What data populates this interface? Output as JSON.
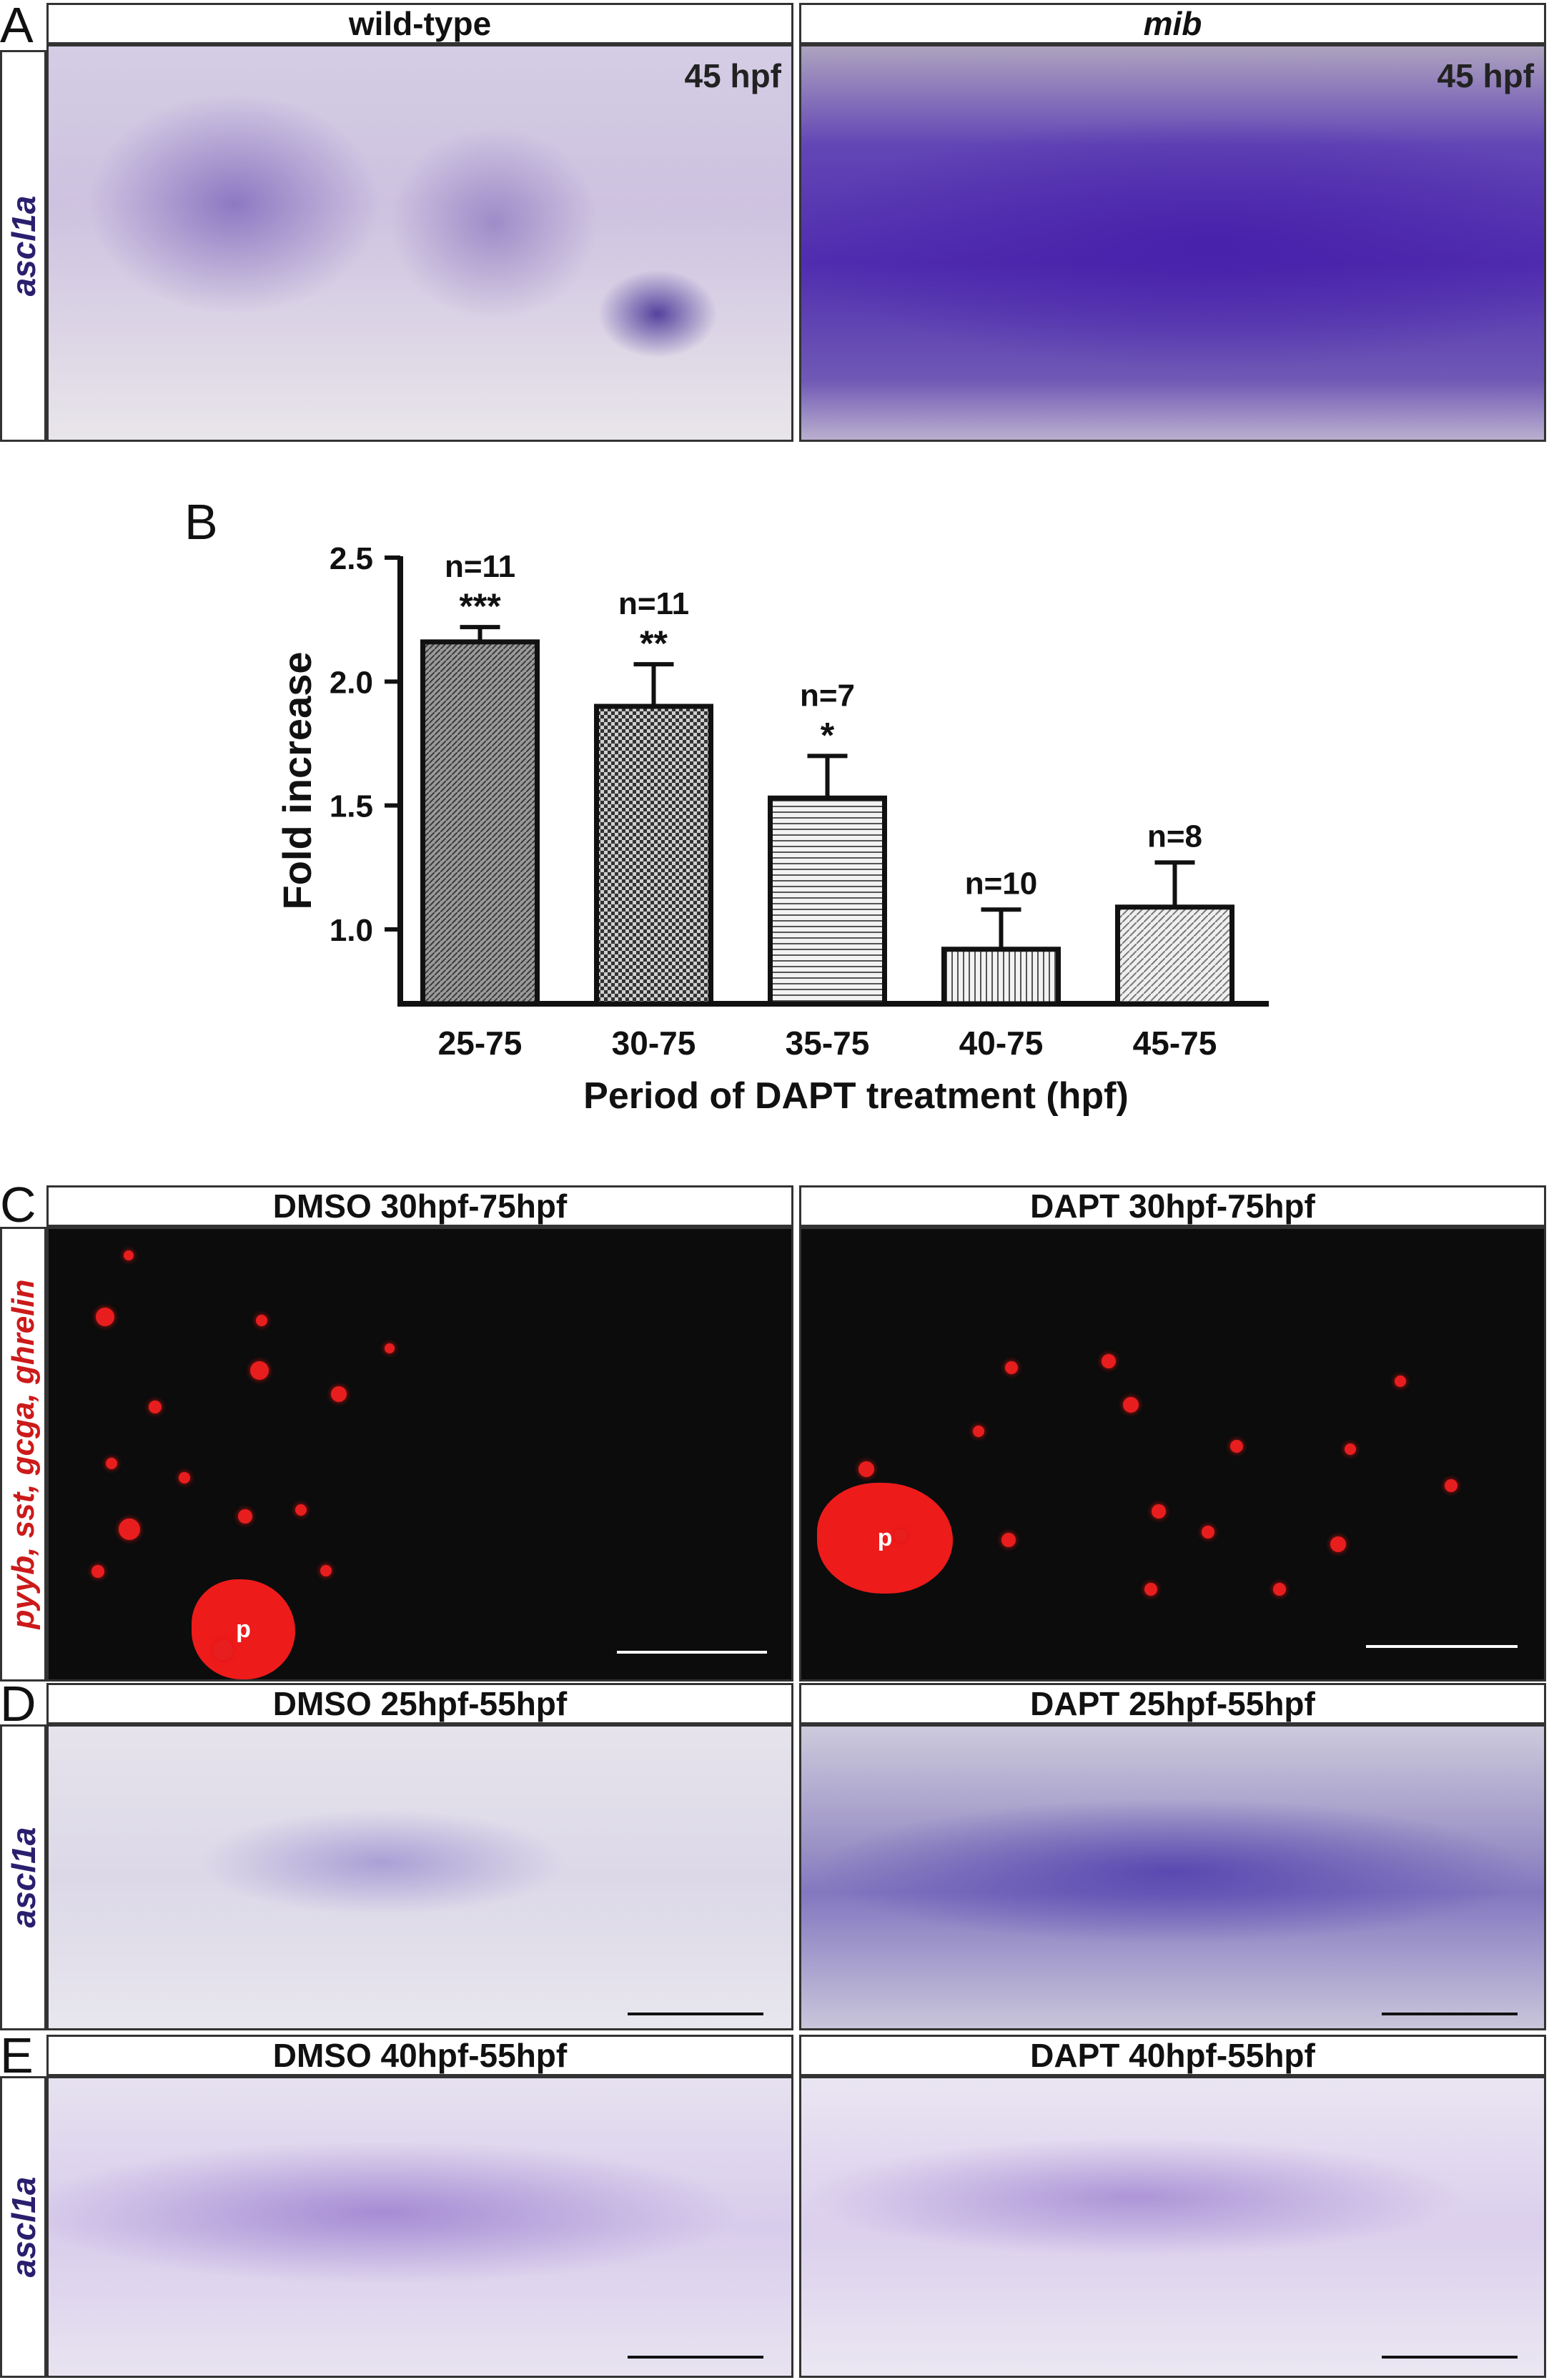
{
  "panel_letters": {
    "a": "A",
    "b": "B",
    "c": "C",
    "d": "D",
    "e": "E"
  },
  "panel_a": {
    "left_title": "wild-type",
    "right_title": "mib",
    "stain_label": "ascl1a",
    "left_stage": "45 hpf",
    "right_stage": "45 hpf"
  },
  "panel_b": {
    "chart_data": {
      "type": "bar",
      "categories": [
        "25-75",
        "30-75",
        "35-75",
        "40-75",
        "45-75"
      ],
      "values": [
        2.16,
        1.9,
        1.53,
        0.92,
        1.09
      ],
      "errors": [
        0.06,
        0.17,
        0.17,
        0.16,
        0.18
      ],
      "n_labels": [
        "n=11",
        "n=11",
        "n=7",
        "n=10",
        "n=8"
      ],
      "significance": [
        "***",
        "**",
        "*",
        "",
        ""
      ],
      "ylabel": "Fold increase",
      "xlabel": "Period of DAPT treatment (hpf)",
      "yticks": [
        "1.0",
        "1.5",
        "2.0",
        "2.5"
      ],
      "ylim": [
        0.7,
        2.5
      ],
      "grid": false
    }
  },
  "panel_c": {
    "left_title": "DMSO 30hpf-75hpf",
    "right_title": "DAPT 30hpf-75hpf",
    "stain_label": "pyyb, sst, gcga, ghrelin",
    "blob_label_left": "p",
    "blob_label_right": "p"
  },
  "panel_d": {
    "left_title": "DMSO 25hpf-55hpf",
    "right_title": "DAPT 25hpf-55hpf",
    "stain_label": "ascl1a"
  },
  "panel_e": {
    "left_title": "DMSO 40hpf-55hpf",
    "right_title": "DAPT 40hpf-55hpf",
    "stain_label": "ascl1a"
  },
  "colors": {
    "ish_purple": "#5a3cb0",
    "fluor_red": "#e81e1e",
    "stain_label_purple": "#2a1f6e",
    "stain_label_red": "#cc1a1a"
  }
}
